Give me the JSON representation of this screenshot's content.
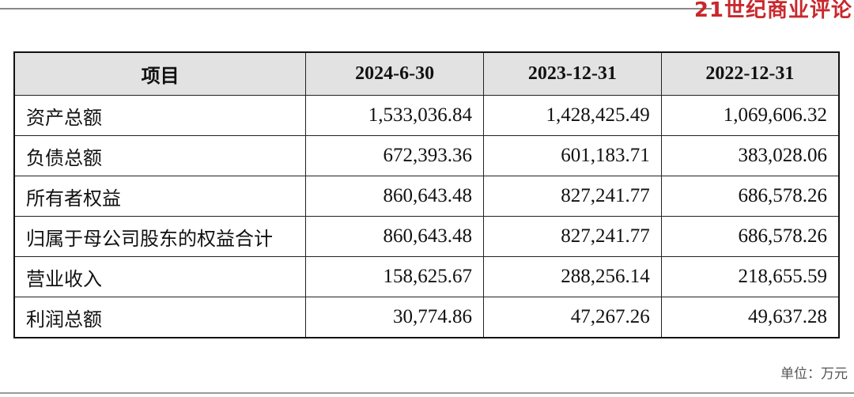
{
  "header": {
    "brand": "21世纪商业评论"
  },
  "table": {
    "columns": [
      "项目",
      "2024-6-30",
      "2023-12-31",
      "2022-12-31"
    ],
    "rows": [
      [
        "资产总额",
        "1,533,036.84",
        "1,428,425.49",
        "1,069,606.32"
      ],
      [
        "负债总额",
        "672,393.36",
        "601,183.71",
        "383,028.06"
      ],
      [
        "所有者权益",
        "860,643.48",
        "827,241.77",
        "686,578.26"
      ],
      [
        "归属于母公司股东的权益合计",
        "860,643.48",
        "827,241.77",
        "686,578.26"
      ],
      [
        "营业收入",
        "158,625.67",
        "288,256.14",
        "218,655.59"
      ],
      [
        "利润总额",
        "30,774.86",
        "47,267.26",
        "49,637.28"
      ]
    ]
  },
  "footer": {
    "unit": "单位：万元"
  }
}
